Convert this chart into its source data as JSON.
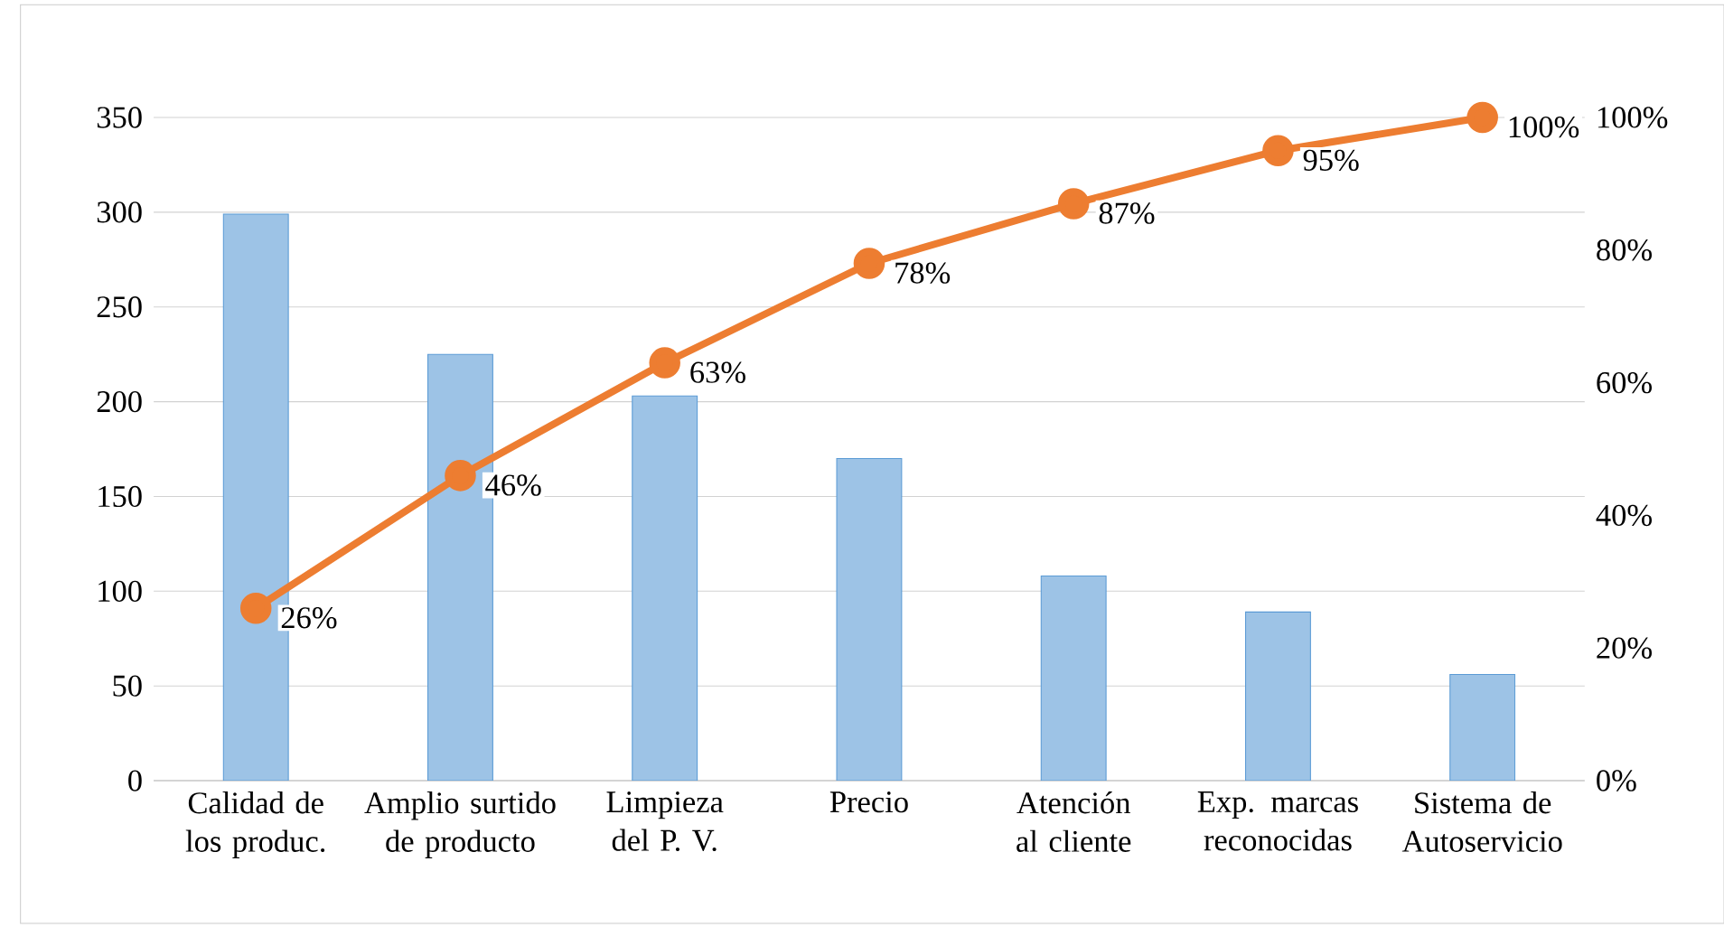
{
  "chart_data": {
    "type": "bar",
    "categories": [
      "Calidad de los produc.",
      "Amplio surtido de producto",
      "Limpieza del P. V.",
      "Precio",
      "Atención al cliente",
      "Exp. marcas reconocidas",
      "Sistema de Autoservicio"
    ],
    "series": [
      {
        "color": "#5b9bd5",
        "values": [
          299,
          225,
          203,
          170,
          108,
          89,
          56
        ]
      },
      {
        "type": "line",
        "axis": "y2",
        "color": "#ed7d31",
        "marker": "circle",
        "values": [
          26,
          46,
          63,
          78,
          87,
          95,
          100
        ],
        "value_labels": [
          "26%",
          "46%",
          "63%",
          "78%",
          "87%",
          "95%",
          "100%"
        ]
      }
    ],
    "ylim": [
      0,
      350
    ],
    "yticks": [
      0,
      50,
      100,
      150,
      200,
      250,
      300,
      350
    ],
    "y2lim": [
      0,
      100
    ],
    "y2ticks": [
      {
        "value": 0,
        "label": "0%"
      },
      {
        "value": 20,
        "label": "20%"
      },
      {
        "value": 40,
        "label": "40%"
      },
      {
        "value": 60,
        "label": "60%"
      },
      {
        "value": 80,
        "label": "80%"
      },
      {
        "value": 100,
        "label": "100%"
      }
    ],
    "grid": "y"
  }
}
